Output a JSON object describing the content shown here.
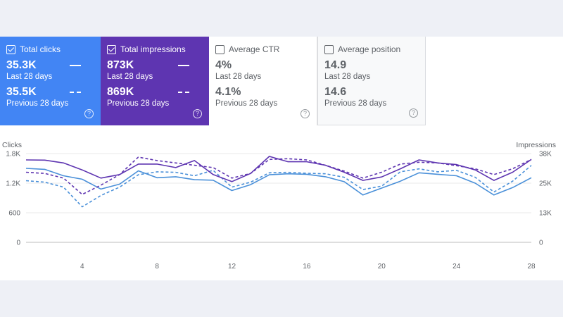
{
  "cards": [
    {
      "title": "Total clicks",
      "checked": true,
      "current": "35.3K",
      "current_label": "Last 28 days",
      "previous": "35.5K",
      "previous_label": "Previous 28 days",
      "help": "?"
    },
    {
      "title": "Total impressions",
      "checked": true,
      "current": "873K",
      "current_label": "Last 28 days",
      "previous": "869K",
      "previous_label": "Previous 28 days",
      "help": "?"
    },
    {
      "title": "Average CTR",
      "checked": false,
      "current": "4%",
      "current_label": "Last 28 days",
      "previous": "4.1%",
      "previous_label": "Previous 28 days",
      "help": "?"
    },
    {
      "title": "Average position",
      "checked": false,
      "current": "14.9",
      "current_label": "Last 28 days",
      "previous": "14.6",
      "previous_label": "Previous 28 days",
      "help": "?"
    }
  ],
  "colors": {
    "clicks": "#4a90d9",
    "impressions": "#5e35b1",
    "grid": "#e8e8e8"
  },
  "chart_data": {
    "type": "line",
    "left_axis_title": "Clicks",
    "right_axis_title": "Impressions",
    "left_ticks": [
      "0",
      "600",
      "1.2K",
      "1.8K"
    ],
    "right_ticks": [
      "0",
      "13K",
      "25K",
      "38K"
    ],
    "left_ylim": [
      0,
      1800
    ],
    "right_ylim": [
      0,
      38000
    ],
    "x_ticks": [
      "4",
      "8",
      "12",
      "16",
      "20",
      "24",
      "28"
    ],
    "x": [
      1,
      2,
      3,
      4,
      5,
      6,
      7,
      8,
      9,
      10,
      11,
      12,
      13,
      14,
      15,
      16,
      17,
      18,
      19,
      20,
      21,
      22,
      23,
      24,
      25,
      26,
      27,
      28
    ],
    "series": [
      {
        "name": "Clicks (last 28 days)",
        "axis": "left",
        "style": "solid",
        "values": [
          1500,
          1480,
          1350,
          1280,
          1080,
          1180,
          1450,
          1310,
          1330,
          1270,
          1260,
          1050,
          1170,
          1370,
          1390,
          1380,
          1330,
          1230,
          960,
          1100,
          1240,
          1410,
          1380,
          1350,
          1200,
          960,
          1110,
          1310
        ]
      },
      {
        "name": "Clicks (previous 28 days)",
        "axis": "left",
        "style": "dashed",
        "values": [
          1250,
          1220,
          1120,
          720,
          950,
          1120,
          1370,
          1430,
          1420,
          1350,
          1460,
          1120,
          1220,
          1410,
          1420,
          1400,
          1390,
          1320,
          1070,
          1140,
          1430,
          1490,
          1430,
          1460,
          1320,
          1020,
          1240,
          1560
        ]
      },
      {
        "name": "Impressions (last 28 days)",
        "axis": "right",
        "style": "solid",
        "values": [
          35300,
          35200,
          34000,
          31000,
          27500,
          29000,
          33500,
          33500,
          32000,
          35000,
          29000,
          26000,
          29500,
          36800,
          34500,
          34500,
          33000,
          30000,
          26500,
          28000,
          31500,
          35300,
          34000,
          33300,
          31000,
          26500,
          30000,
          35500
        ]
      },
      {
        "name": "Impressions (previous 28 days)",
        "axis": "right",
        "style": "dashed",
        "values": [
          30000,
          29500,
          27500,
          20500,
          24500,
          29000,
          36500,
          35000,
          34000,
          33000,
          32000,
          27500,
          29500,
          35500,
          35800,
          35300,
          33000,
          30500,
          27500,
          30000,
          33500,
          34300,
          34000,
          32800,
          31500,
          29000,
          31500,
          35500
        ]
      }
    ]
  }
}
